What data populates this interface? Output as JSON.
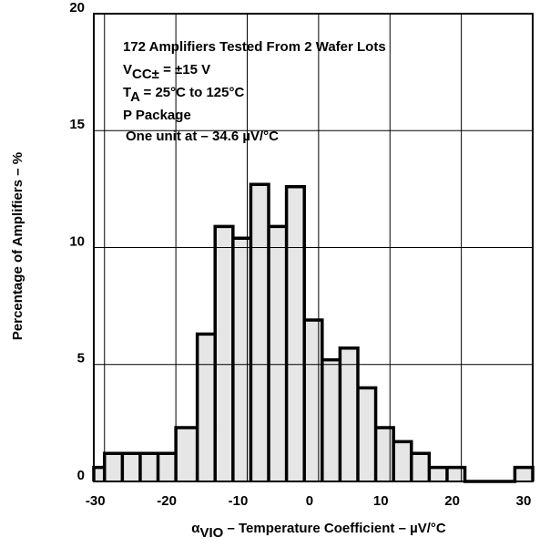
{
  "chart_data": {
    "type": "histogram",
    "x_label": [
      "α",
      "VIO",
      " – Temperature Coefficient – µV/°C"
    ],
    "y_label": "Percentage of Amplifiers – %",
    "annotations": [
      [
        "172 Amplifiers Tested From 2 Wafer Lots"
      ],
      [
        "V",
        "CC±",
        " =  ±15 V"
      ],
      [
        "T",
        "A",
        " = 25°C to 125°C"
      ],
      [
        "P Package"
      ],
      [
        "One unit at – 34.6 µV/°C"
      ]
    ],
    "bins": [
      -31.5,
      -30,
      -27.5,
      -25,
      -22.5,
      -20,
      -17,
      -14.5,
      -12,
      -9.5,
      -7,
      -4.5,
      -2,
      0.5,
      3,
      5.5,
      8,
      10.5,
      13,
      15.5,
      18,
      20.5,
      23,
      25.5,
      27.5,
      30
    ],
    "values": [
      0.6,
      1.2,
      1.2,
      1.2,
      1.2,
      2.3,
      6.3,
      10.9,
      10.4,
      12.7,
      10.9,
      12.6,
      6.9,
      5.2,
      5.7,
      4.0,
      2.3,
      1.7,
      1.2,
      0.6,
      0.6,
      0,
      0,
      0,
      0.6
    ],
    "color": "#e6e6e6",
    "edge_color": "#000000",
    "xlim": [
      -31.5,
      30
    ],
    "ylim": [
      0,
      20
    ],
    "xticks": [
      -30,
      -20,
      -10,
      0,
      10,
      20,
      30
    ],
    "yticks": [
      0,
      5,
      10,
      15,
      20
    ],
    "grid": true
  }
}
